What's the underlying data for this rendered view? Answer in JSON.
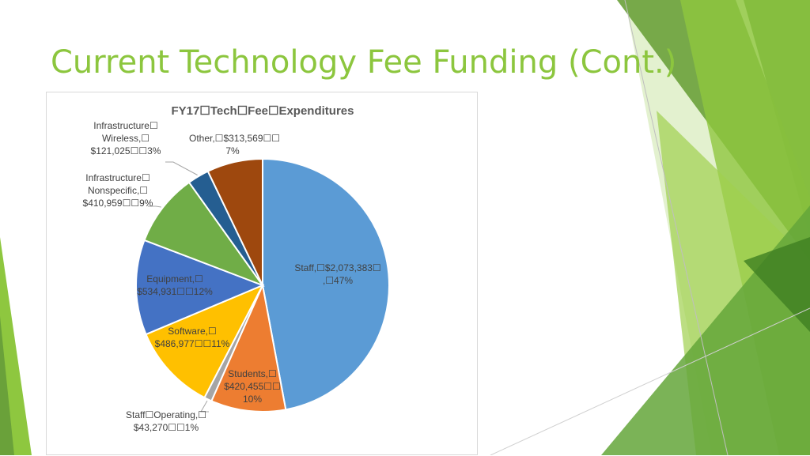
{
  "slide": {
    "title": "Current Technology Fee Funding (Cont.)",
    "accent_color": "#8cc63e"
  },
  "chart_data": {
    "type": "pie",
    "title": "FY17☐Tech☐Fee☐Expenditures",
    "start_angle_deg": 0,
    "direction": "clockwise",
    "slices": [
      {
        "name": "Staff",
        "value": 2073383,
        "percent": "47%",
        "color": "#5b9bd5",
        "label": "Staff,☐$2,073,383☐\n,☐47%"
      },
      {
        "name": "Students",
        "value": 420455,
        "percent": "10%",
        "color": "#ed7d31",
        "label": "Students,☐\n$420,455☐☐\n10%"
      },
      {
        "name": "Staff Operating",
        "value": 43270,
        "percent": "1%",
        "color": "#a5a5a5",
        "label": "Staff☐Operating,☐\n$43,270☐☐1%"
      },
      {
        "name": "Software",
        "value": 486977,
        "percent": "11%",
        "color": "#ffc000",
        "label": "Software,☐\n$486,977☐☐11%"
      },
      {
        "name": "Equipment",
        "value": 534931,
        "percent": "12%",
        "color": "#4472c4",
        "label": "Equipment,☐\n$534,931☐☐12%"
      },
      {
        "name": "Infrastructure Nonspecific",
        "value": 410959,
        "percent": "9%",
        "color": "#70ad47",
        "label": "Infrastructure☐\nNonspecific,☐\n$410,959☐☐9%"
      },
      {
        "name": "Infrastructure Wireless",
        "value": 121025,
        "percent": "3%",
        "color": "#255e91",
        "label": "Infrastructure☐\nWireless,☐\n$121,025☐☐3%"
      },
      {
        "name": "Other",
        "value": 313569,
        "percent": "7%",
        "color": "#9e480e",
        "label": "Other,☐$313,569☐☐\n7%"
      }
    ],
    "legend": "none"
  }
}
